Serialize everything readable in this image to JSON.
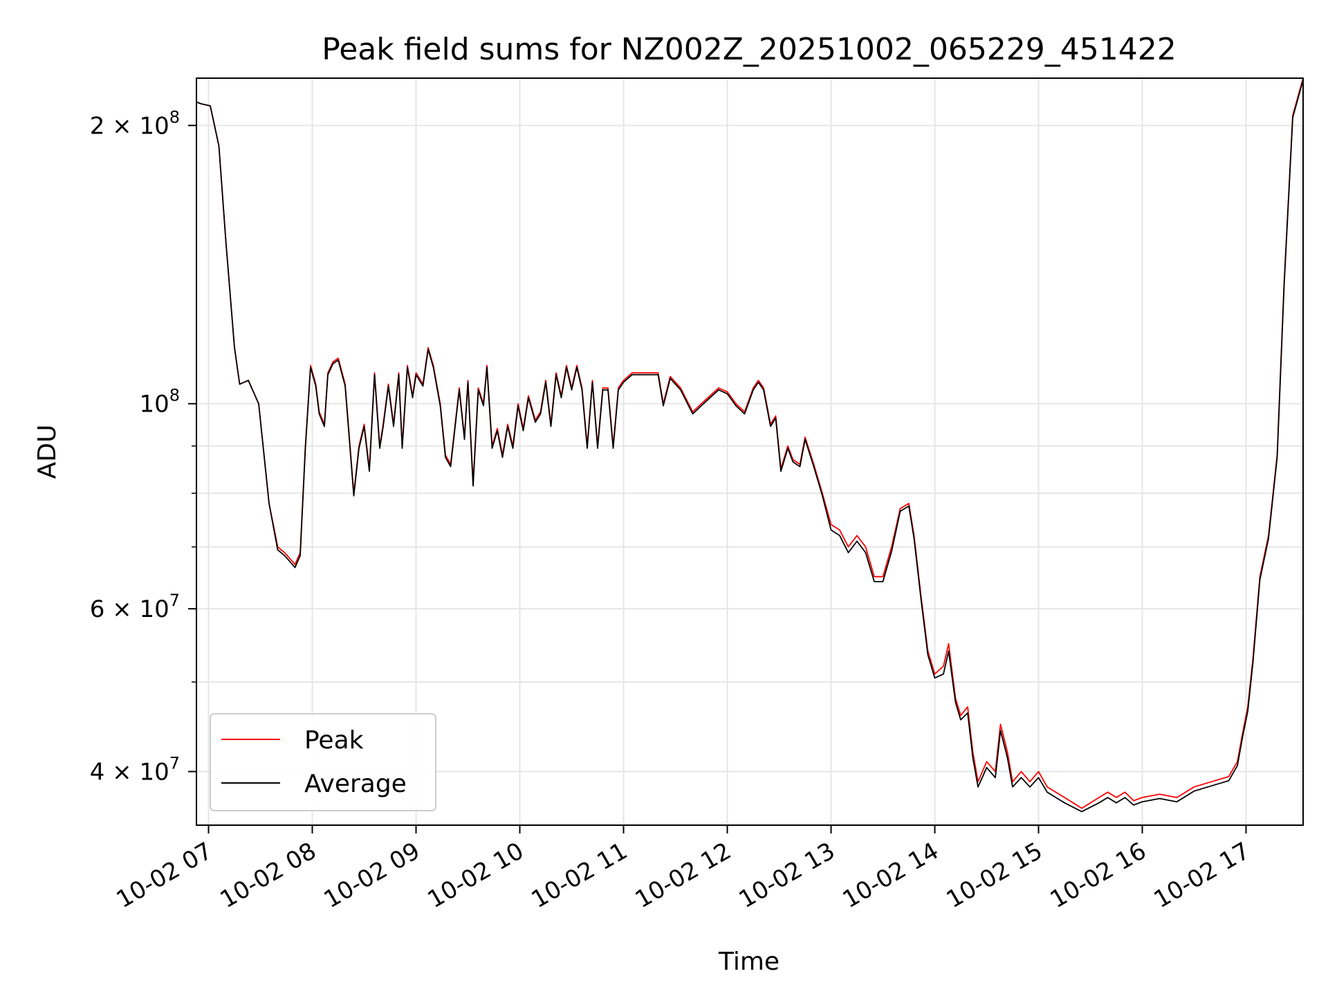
{
  "chart_data": {
    "type": "line",
    "title": "Peak field sums for NZ002Z_20251002_065229_451422",
    "xlabel": "Time",
    "ylabel": "ADU",
    "xlim": [
      "2025-10-02 06:53",
      "2025-10-02 17:33"
    ],
    "ylim": [
      35000000,
      225000000
    ],
    "yscale": "log",
    "grid": true,
    "legend_position": "lower-left",
    "x_ticks": [
      "2025-10-02 07:00",
      "2025-10-02 08:00",
      "2025-10-02 09:00",
      "2025-10-02 10:00",
      "2025-10-02 11:00",
      "2025-10-02 12:00",
      "2025-10-02 13:00",
      "2025-10-02 14:00",
      "2025-10-02 15:00",
      "2025-10-02 16:00",
      "2025-10-02 17:00"
    ],
    "x_tick_labels": [
      "10-02 07",
      "10-02 08",
      "10-02 09",
      "10-02 10",
      "10-02 11",
      "10-02 12",
      "10-02 13",
      "10-02 14",
      "10-02 15",
      "10-02 16",
      "10-02 17"
    ],
    "y_ticks": [
      {
        "value": 200000000,
        "base": "2 × 10",
        "exp": "8"
      },
      {
        "value": 100000000,
        "base": "10",
        "exp": "8"
      },
      {
        "value": 60000000,
        "base": "6 × 10",
        "exp": "7"
      },
      {
        "value": 40000000,
        "base": "4 × 10",
        "exp": "7"
      }
    ],
    "y_minor_ticks": [
      50000000,
      70000000,
      80000000,
      90000000
    ],
    "series": [
      {
        "name": "Peak",
        "color": "#ff0000",
        "x": [
          "2025-10-02 06:53",
          "2025-10-02 06:56",
          "2025-10-02 07:01",
          "2025-10-02 07:06",
          "2025-10-02 07:10",
          "2025-10-02 07:15",
          "2025-10-02 07:18",
          "2025-10-02 07:23",
          "2025-10-02 07:29",
          "2025-10-02 07:35",
          "2025-10-02 07:40",
          "2025-10-02 07:44",
          "2025-10-02 07:47",
          "2025-10-02 07:50",
          "2025-10-02 07:53",
          "2025-10-02 07:56",
          "2025-10-02 07:59",
          "2025-10-02 08:02",
          "2025-10-02 08:04",
          "2025-10-02 08:07",
          "2025-10-02 08:09",
          "2025-10-02 08:12",
          "2025-10-02 08:15",
          "2025-10-02 08:19",
          "2025-10-02 08:24",
          "2025-10-02 08:27",
          "2025-10-02 08:30",
          "2025-10-02 08:33",
          "2025-10-02 08:36",
          "2025-10-02 08:39",
          "2025-10-02 08:41",
          "2025-10-02 08:44",
          "2025-10-02 08:47",
          "2025-10-02 08:50",
          "2025-10-02 08:52",
          "2025-10-02 08:55",
          "2025-10-02 08:58",
          "2025-10-02 09:00",
          "2025-10-02 09:04",
          "2025-10-02 09:07",
          "2025-10-02 09:10",
          "2025-10-02 09:14",
          "2025-10-02 09:17",
          "2025-10-02 09:20",
          "2025-10-02 09:25",
          "2025-10-02 09:28",
          "2025-10-02 09:30",
          "2025-10-02 09:33",
          "2025-10-02 09:36",
          "2025-10-02 09:39",
          "2025-10-02 09:41",
          "2025-10-02 09:44",
          "2025-10-02 09:47",
          "2025-10-02 09:50",
          "2025-10-02 09:53",
          "2025-10-02 09:56",
          "2025-10-02 09:59",
          "2025-10-02 10:02",
          "2025-10-02 10:05",
          "2025-10-02 10:09",
          "2025-10-02 10:12",
          "2025-10-02 10:15",
          "2025-10-02 10:18",
          "2025-10-02 10:21",
          "2025-10-02 10:24",
          "2025-10-02 10:27",
          "2025-10-02 10:30",
          "2025-10-02 10:33",
          "2025-10-02 10:36",
          "2025-10-02 10:39",
          "2025-10-02 10:42",
          "2025-10-02 10:45",
          "2025-10-02 10:48",
          "2025-10-02 10:51",
          "2025-10-02 10:54",
          "2025-10-02 10:57",
          "2025-10-02 11:00",
          "2025-10-02 11:05",
          "2025-10-02 11:10",
          "2025-10-02 11:15",
          "2025-10-02 11:20",
          "2025-10-02 11:23",
          "2025-10-02 11:27",
          "2025-10-02 11:33",
          "2025-10-02 11:40",
          "2025-10-02 11:45",
          "2025-10-02 11:50",
          "2025-10-02 11:55",
          "2025-10-02 12:00",
          "2025-10-02 12:05",
          "2025-10-02 12:10",
          "2025-10-02 12:15",
          "2025-10-02 12:18",
          "2025-10-02 12:21",
          "2025-10-02 12:25",
          "2025-10-02 12:28",
          "2025-10-02 12:31",
          "2025-10-02 12:35",
          "2025-10-02 12:38",
          "2025-10-02 12:42",
          "2025-10-02 12:45",
          "2025-10-02 12:50",
          "2025-10-02 12:55",
          "2025-10-02 13:00",
          "2025-10-02 13:05",
          "2025-10-02 13:10",
          "2025-10-02 13:15",
          "2025-10-02 13:20",
          "2025-10-02 13:25",
          "2025-10-02 13:30",
          "2025-10-02 13:35",
          "2025-10-02 13:40",
          "2025-10-02 13:45",
          "2025-10-02 13:48",
          "2025-10-02 13:52",
          "2025-10-02 13:56",
          "2025-10-02 14:00",
          "2025-10-02 14:05",
          "2025-10-02 14:08",
          "2025-10-02 14:12",
          "2025-10-02 14:15",
          "2025-10-02 14:19",
          "2025-10-02 14:22",
          "2025-10-02 14:25",
          "2025-10-02 14:30",
          "2025-10-02 14:35",
          "2025-10-02 14:38",
          "2025-10-02 14:42",
          "2025-10-02 14:45",
          "2025-10-02 14:50",
          "2025-10-02 14:55",
          "2025-10-02 15:00",
          "2025-10-02 15:05",
          "2025-10-02 15:10",
          "2025-10-02 15:15",
          "2025-10-02 15:20",
          "2025-10-02 15:25",
          "2025-10-02 15:30",
          "2025-10-02 15:35",
          "2025-10-02 15:40",
          "2025-10-02 15:45",
          "2025-10-02 15:50",
          "2025-10-02 15:55",
          "2025-10-02 16:00",
          "2025-10-02 16:10",
          "2025-10-02 16:20",
          "2025-10-02 16:30",
          "2025-10-02 16:40",
          "2025-10-02 16:50",
          "2025-10-02 16:55",
          "2025-10-02 16:58",
          "2025-10-02 17:01",
          "2025-10-02 17:04",
          "2025-10-02 17:08",
          "2025-10-02 17:13",
          "2025-10-02 17:18",
          "2025-10-02 17:22",
          "2025-10-02 17:27",
          "2025-10-02 17:33"
        ],
        "values": [
          212000000,
          211000000,
          210000000,
          190000000,
          150000000,
          115000000,
          105000000,
          106000000,
          100000000,
          78000000,
          70000000,
          69000000,
          68000000,
          67000000,
          69000000,
          90000000,
          110000000,
          105000000,
          98000000,
          95000000,
          108000000,
          111000000,
          112000000,
          105000000,
          80000000,
          90000000,
          95000000,
          85000000,
          108000000,
          90000000,
          95000000,
          105000000,
          95000000,
          108000000,
          90000000,
          110000000,
          102000000,
          108000000,
          105000000,
          115000000,
          110000000,
          100000000,
          88000000,
          86000000,
          104000000,
          92000000,
          106000000,
          82000000,
          104000000,
          100000000,
          110000000,
          90000000,
          94000000,
          88000000,
          95000000,
          90000000,
          100000000,
          94000000,
          102000000,
          96000000,
          98000000,
          106000000,
          95000000,
          108000000,
          102000000,
          110000000,
          104000000,
          110000000,
          104000000,
          90000000,
          106000000,
          90000000,
          104000000,
          104000000,
          90000000,
          104000000,
          106000000,
          108000000,
          108000000,
          108000000,
          108000000,
          100000000,
          107000000,
          104000000,
          98000000,
          100000000,
          102000000,
          104000000,
          103000000,
          100000000,
          98000000,
          104000000,
          106000000,
          104000000,
          95000000,
          97000000,
          85000000,
          90000000,
          87000000,
          86000000,
          92000000,
          86000000,
          80000000,
          74000000,
          73000000,
          70000000,
          72000000,
          70000000,
          65000000,
          65000000,
          70000000,
          77000000,
          78000000,
          72000000,
          62000000,
          54000000,
          51000000,
          52000000,
          55000000,
          48000000,
          46000000,
          47000000,
          42000000,
          39000000,
          41000000,
          40000000,
          45000000,
          42000000,
          39000000,
          40000000,
          39000000,
          40000000,
          38500000,
          38000000,
          37500000,
          37000000,
          36500000,
          37000000,
          37500000,
          38000000,
          37500000,
          38000000,
          37200000,
          37500000,
          37800000,
          37500000,
          38500000,
          39000000,
          39500000,
          41000000,
          44000000,
          47000000,
          53000000,
          65000000,
          72000000,
          88000000,
          135000000,
          205000000,
          225000000
        ]
      },
      {
        "name": "Average",
        "color": "#000000",
        "x": [
          "2025-10-02 06:53",
          "2025-10-02 06:56",
          "2025-10-02 07:01",
          "2025-10-02 07:06",
          "2025-10-02 07:10",
          "2025-10-02 07:15",
          "2025-10-02 07:18",
          "2025-10-02 07:23",
          "2025-10-02 07:29",
          "2025-10-02 07:35",
          "2025-10-02 07:40",
          "2025-10-02 07:44",
          "2025-10-02 07:47",
          "2025-10-02 07:50",
          "2025-10-02 07:53",
          "2025-10-02 07:56",
          "2025-10-02 07:59",
          "2025-10-02 08:02",
          "2025-10-02 08:04",
          "2025-10-02 08:07",
          "2025-10-02 08:09",
          "2025-10-02 08:12",
          "2025-10-02 08:15",
          "2025-10-02 08:19",
          "2025-10-02 08:24",
          "2025-10-02 08:27",
          "2025-10-02 08:30",
          "2025-10-02 08:33",
          "2025-10-02 08:36",
          "2025-10-02 08:39",
          "2025-10-02 08:41",
          "2025-10-02 08:44",
          "2025-10-02 08:47",
          "2025-10-02 08:50",
          "2025-10-02 08:52",
          "2025-10-02 08:55",
          "2025-10-02 08:58",
          "2025-10-02 09:00",
          "2025-10-02 09:04",
          "2025-10-02 09:07",
          "2025-10-02 09:10",
          "2025-10-02 09:14",
          "2025-10-02 09:17",
          "2025-10-02 09:20",
          "2025-10-02 09:25",
          "2025-10-02 09:28",
          "2025-10-02 09:30",
          "2025-10-02 09:33",
          "2025-10-02 09:36",
          "2025-10-02 09:39",
          "2025-10-02 09:41",
          "2025-10-02 09:44",
          "2025-10-02 09:47",
          "2025-10-02 09:50",
          "2025-10-02 09:53",
          "2025-10-02 09:56",
          "2025-10-02 09:59",
          "2025-10-02 10:02",
          "2025-10-02 10:05",
          "2025-10-02 10:09",
          "2025-10-02 10:12",
          "2025-10-02 10:15",
          "2025-10-02 10:18",
          "2025-10-02 10:21",
          "2025-10-02 10:24",
          "2025-10-02 10:27",
          "2025-10-02 10:30",
          "2025-10-02 10:33",
          "2025-10-02 10:36",
          "2025-10-02 10:39",
          "2025-10-02 10:42",
          "2025-10-02 10:45",
          "2025-10-02 10:48",
          "2025-10-02 10:51",
          "2025-10-02 10:54",
          "2025-10-02 10:57",
          "2025-10-02 11:00",
          "2025-10-02 11:05",
          "2025-10-02 11:10",
          "2025-10-02 11:15",
          "2025-10-02 11:20",
          "2025-10-02 11:23",
          "2025-10-02 11:27",
          "2025-10-02 11:33",
          "2025-10-02 11:40",
          "2025-10-02 11:45",
          "2025-10-02 11:50",
          "2025-10-02 11:55",
          "2025-10-02 12:00",
          "2025-10-02 12:05",
          "2025-10-02 12:10",
          "2025-10-02 12:15",
          "2025-10-02 12:18",
          "2025-10-02 12:21",
          "2025-10-02 12:25",
          "2025-10-02 12:28",
          "2025-10-02 12:31",
          "2025-10-02 12:35",
          "2025-10-02 12:38",
          "2025-10-02 12:42",
          "2025-10-02 12:45",
          "2025-10-02 12:50",
          "2025-10-02 12:55",
          "2025-10-02 13:00",
          "2025-10-02 13:05",
          "2025-10-02 13:10",
          "2025-10-02 13:15",
          "2025-10-02 13:20",
          "2025-10-02 13:25",
          "2025-10-02 13:30",
          "2025-10-02 13:35",
          "2025-10-02 13:40",
          "2025-10-02 13:45",
          "2025-10-02 13:48",
          "2025-10-02 13:52",
          "2025-10-02 13:56",
          "2025-10-02 14:00",
          "2025-10-02 14:05",
          "2025-10-02 14:08",
          "2025-10-02 14:12",
          "2025-10-02 14:15",
          "2025-10-02 14:19",
          "2025-10-02 14:22",
          "2025-10-02 14:25",
          "2025-10-02 14:30",
          "2025-10-02 14:35",
          "2025-10-02 14:38",
          "2025-10-02 14:42",
          "2025-10-02 14:45",
          "2025-10-02 14:50",
          "2025-10-02 14:55",
          "2025-10-02 15:00",
          "2025-10-02 15:05",
          "2025-10-02 15:10",
          "2025-10-02 15:15",
          "2025-10-02 15:20",
          "2025-10-02 15:25",
          "2025-10-02 15:30",
          "2025-10-02 15:35",
          "2025-10-02 15:40",
          "2025-10-02 15:45",
          "2025-10-02 15:50",
          "2025-10-02 15:55",
          "2025-10-02 16:00",
          "2025-10-02 16:10",
          "2025-10-02 16:20",
          "2025-10-02 16:30",
          "2025-10-02 16:40",
          "2025-10-02 16:50",
          "2025-10-02 16:55",
          "2025-10-02 16:58",
          "2025-10-02 17:01",
          "2025-10-02 17:04",
          "2025-10-02 17:08",
          "2025-10-02 17:13",
          "2025-10-02 17:18",
          "2025-10-02 17:22",
          "2025-10-02 17:27",
          "2025-10-02 17:33"
        ],
        "values": [
          212000000,
          211000000,
          210000000,
          190000000,
          150000000,
          115000000,
          105000000,
          106000000,
          100000000,
          78000000,
          69500000,
          68500000,
          67500000,
          66500000,
          68500000,
          89500000,
          109500000,
          104500000,
          97500000,
          94500000,
          107500000,
          110500000,
          111500000,
          104500000,
          79500000,
          89500000,
          94500000,
          84500000,
          107500000,
          89500000,
          94500000,
          104500000,
          94500000,
          107500000,
          89500000,
          109500000,
          101500000,
          107500000,
          104500000,
          114500000,
          109500000,
          99500000,
          87500000,
          85500000,
          103500000,
          91500000,
          105500000,
          81500000,
          103500000,
          99500000,
          109500000,
          89500000,
          93500000,
          87500000,
          94500000,
          89500000,
          99500000,
          93500000,
          101500000,
          95500000,
          97500000,
          105500000,
          94500000,
          107500000,
          101500000,
          109500000,
          103500000,
          109500000,
          103500000,
          89500000,
          105500000,
          89500000,
          103500000,
          103500000,
          89500000,
          103500000,
          105500000,
          107500000,
          107500000,
          107500000,
          107500000,
          99500000,
          106500000,
          103500000,
          97500000,
          99500000,
          101500000,
          103500000,
          102500000,
          99500000,
          97500000,
          103500000,
          105500000,
          103500000,
          94500000,
          96500000,
          84500000,
          89500000,
          86500000,
          85500000,
          91500000,
          85500000,
          79500000,
          73000000,
          72000000,
          69000000,
          71000000,
          69000000,
          64200000,
          64200000,
          69200000,
          76500000,
          77500000,
          71500000,
          61500000,
          53500000,
          50500000,
          51000000,
          54000000,
          47500000,
          45500000,
          46300000,
          41400000,
          38500000,
          40400000,
          39400000,
          44300000,
          41400000,
          38500000,
          39400000,
          38500000,
          39400000,
          38000000,
          37500000,
          37000000,
          36600000,
          36200000,
          36600000,
          37000000,
          37500000,
          37000000,
          37500000,
          36800000,
          37100000,
          37400000,
          37100000,
          38100000,
          38600000,
          39100000,
          40600000,
          43600000,
          46500000,
          52500000,
          64500000,
          71500000,
          87500000,
          134000000,
          204000000,
          224000000
        ]
      }
    ]
  }
}
